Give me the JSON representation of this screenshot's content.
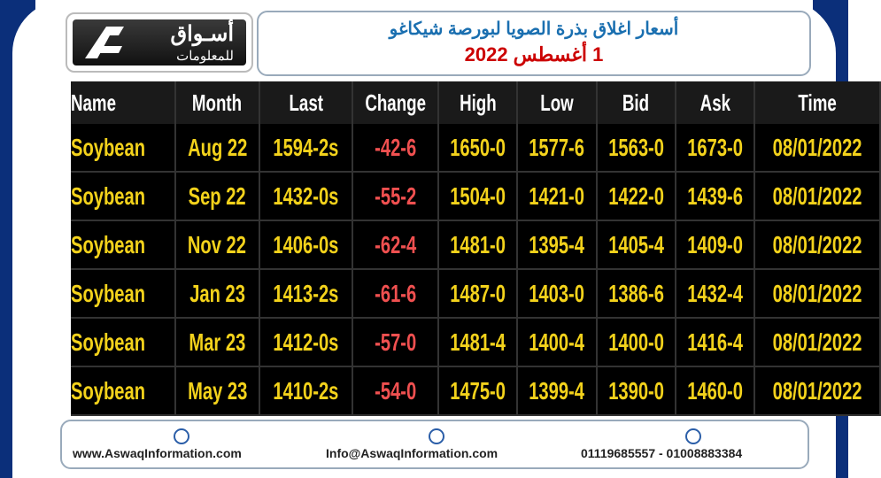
{
  "header": {
    "logo_title": "أسـواق",
    "logo_subtitle": "للمعلومات",
    "title": "أسعار اغلاق بذرة الصويا لبورصة شيكاغو",
    "date": "1 أغسطس 2022"
  },
  "table": {
    "columns": [
      "Name",
      "Month",
      "Last",
      "Change",
      "High",
      "Low",
      "Bid",
      "Ask",
      "Time"
    ],
    "rows": [
      [
        "Soybean",
        "Aug 22",
        "1594-2s",
        "-42-6",
        "1650-0",
        "1577-6",
        "1563-0",
        "1673-0",
        "08/01/2022"
      ],
      [
        "Soybean",
        "Sep 22",
        "1432-0s",
        "-55-2",
        "1504-0",
        "1421-0",
        "1422-0",
        "1439-6",
        "08/01/2022"
      ],
      [
        "Soybean",
        "Nov 22",
        "1406-0s",
        "-62-4",
        "1481-0",
        "1395-4",
        "1405-4",
        "1409-0",
        "08/01/2022"
      ],
      [
        "Soybean",
        "Jan 23",
        "1413-2s",
        "-61-6",
        "1487-0",
        "1403-0",
        "1386-6",
        "1432-4",
        "08/01/2022"
      ],
      [
        "Soybean",
        "Mar 23",
        "1412-0s",
        "-57-0",
        "1481-4",
        "1400-4",
        "1400-0",
        "1416-4",
        "08/01/2022"
      ],
      [
        "Soybean",
        "May 23",
        "1410-2s",
        "-54-0",
        "1475-0",
        "1399-4",
        "1390-0",
        "1460-0",
        "08/01/2022"
      ]
    ]
  },
  "footer": {
    "website": "www.AswaqInformation.com",
    "email": "Info@AswaqInformation.com",
    "phones": "01119685557 - 01008883384"
  }
}
